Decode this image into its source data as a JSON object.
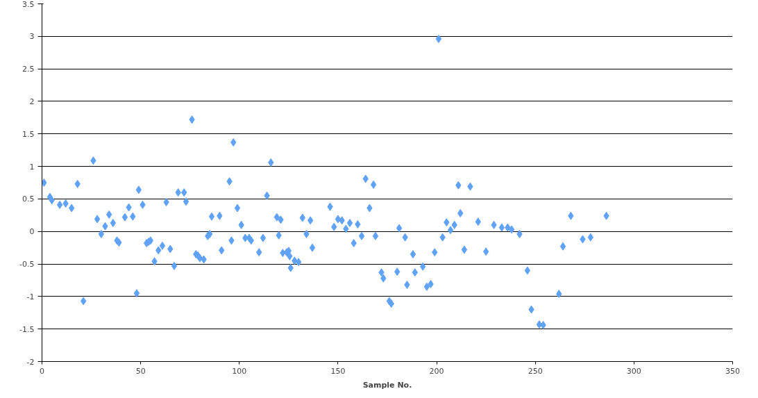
{
  "chart_data": {
    "type": "scatter",
    "xlabel": "Sample No.",
    "marker": "diamond",
    "grid": "y",
    "xlim": [
      0,
      350
    ],
    "xticks": [
      0,
      50,
      100,
      150,
      200,
      250,
      300,
      350
    ],
    "ylim": [
      -2,
      3.5
    ],
    "yticks": [
      -2,
      -1.5,
      -1,
      -0.5,
      0,
      0.5,
      1,
      1.5,
      2,
      2.5,
      3,
      3.5
    ],
    "series": [
      {
        "color": "#5fa2f8",
        "x": [
          1,
          4,
          5,
          9,
          12,
          15,
          18,
          21,
          26,
          28,
          30,
          32,
          34,
          36,
          38,
          39,
          42,
          44,
          46,
          48,
          49,
          51,
          53,
          54,
          55,
          57,
          59,
          61,
          63,
          65,
          67,
          69,
          72,
          73,
          76,
          78,
          79,
          80,
          82,
          84,
          85,
          86,
          90,
          91,
          95,
          96,
          97,
          99,
          101,
          103,
          105,
          106,
          110,
          112,
          114,
          116,
          119,
          120,
          121,
          122,
          124,
          125,
          125.5,
          126,
          128,
          130,
          132,
          134,
          136,
          137,
          146,
          148,
          150,
          152,
          154,
          156,
          158,
          160,
          162,
          164,
          166,
          168,
          169,
          172,
          173,
          176,
          177,
          180,
          181,
          184,
          185,
          188,
          189,
          193,
          195,
          197,
          199,
          201,
          203,
          205,
          207,
          209,
          211,
          212,
          214,
          217,
          221,
          225,
          229,
          233,
          236,
          238,
          242,
          246,
          248,
          252,
          254,
          262,
          264,
          268,
          274,
          278,
          286
        ],
        "values": [
          0.75,
          0.53,
          0.48,
          0.41,
          0.43,
          0.36,
          0.73,
          -1.07,
          1.09,
          0.19,
          -0.04,
          0.08,
          0.26,
          0.13,
          -0.14,
          -0.17,
          0.22,
          0.37,
          0.23,
          -0.95,
          0.64,
          0.41,
          -0.18,
          -0.16,
          -0.14,
          -0.46,
          -0.29,
          -0.22,
          0.45,
          -0.27,
          -0.53,
          0.6,
          0.6,
          0.46,
          1.72,
          -0.35,
          -0.37,
          -0.41,
          -0.43,
          -0.07,
          -0.04,
          0.23,
          0.24,
          -0.29,
          0.77,
          -0.14,
          1.37,
          0.36,
          0.1,
          -0.1,
          -0.1,
          -0.14,
          -0.32,
          -0.1,
          0.55,
          1.06,
          0.22,
          -0.06,
          0.18,
          -0.33,
          -0.32,
          -0.3,
          -0.38,
          -0.56,
          -0.45,
          -0.47,
          0.21,
          -0.04,
          0.17,
          -0.25,
          0.38,
          0.07,
          0.19,
          0.17,
          0.04,
          0.13,
          -0.18,
          0.11,
          -0.07,
          0.81,
          0.36,
          0.72,
          -0.07,
          -0.63,
          -0.72,
          -1.07,
          -1.11,
          -0.62,
          0.05,
          -0.09,
          -0.82,
          -0.35,
          -0.63,
          -0.54,
          -0.85,
          -0.81,
          -0.32,
          2.96,
          -0.09,
          0.14,
          0.02,
          0.1,
          0.71,
          0.28,
          -0.28,
          0.69,
          0.15,
          -0.31,
          0.1,
          0.06,
          0.06,
          0.03,
          -0.04,
          -0.6,
          -1.2,
          -1.43,
          -1.44,
          -0.96,
          -0.23,
          0.24,
          -0.12,
          -0.09,
          0.24
        ]
      }
    ]
  }
}
